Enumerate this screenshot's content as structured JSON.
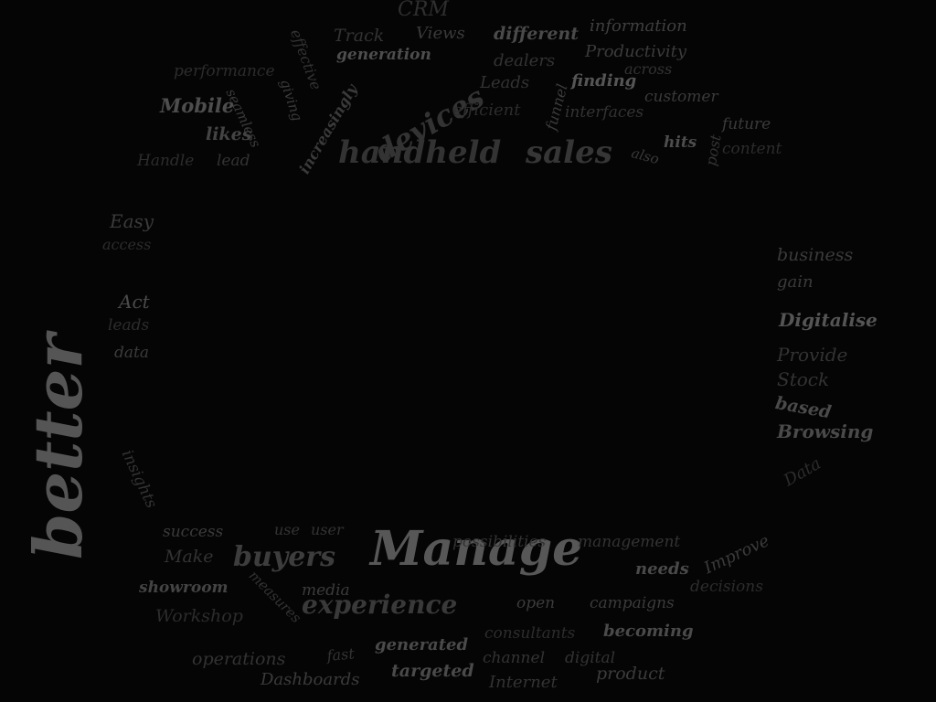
{
  "words": [
    {
      "text": "better",
      "color": "#555555",
      "bold": true
    },
    {
      "text": "Manage",
      "color": "#575757",
      "bold": true
    },
    {
      "text": "buyers",
      "color": "#3d3d3d",
      "bold": true
    },
    {
      "text": "experience",
      "color": "#393939",
      "bold": true
    },
    {
      "text": "handheld",
      "color": "#333333",
      "bold": true
    },
    {
      "text": "sales",
      "color": "#363636",
      "bold": true
    },
    {
      "text": "devices",
      "color": "#333333",
      "bold": true
    },
    {
      "text": "CRM",
      "color": "#2f2f2f",
      "bold": false
    },
    {
      "text": "Track",
      "color": "#333333",
      "bold": false
    },
    {
      "text": "Views",
      "color": "#3a3a3a",
      "bold": false
    },
    {
      "text": "different",
      "color": "#4a4a4a",
      "bold": true
    },
    {
      "text": "information",
      "color": "#3f3f3f",
      "bold": false
    },
    {
      "text": "effective",
      "color": "#333333",
      "bold": false
    },
    {
      "text": "generation",
      "color": "#4d4d4d",
      "bold": true
    },
    {
      "text": "dealers",
      "color": "#333333",
      "bold": false
    },
    {
      "text": "Productivity",
      "color": "#3b3b3b",
      "bold": false
    },
    {
      "text": "performance",
      "color": "#2c2c2c",
      "bold": false
    },
    {
      "text": "giving",
      "color": "#3b3b3b",
      "bold": false
    },
    {
      "text": "increasingly",
      "color": "#3a3a3a",
      "bold": true
    },
    {
      "text": "Leads",
      "color": "#333333",
      "bold": false
    },
    {
      "text": "across",
      "color": "#333333",
      "bold": false
    },
    {
      "text": "finding",
      "color": "#555555",
      "bold": true
    },
    {
      "text": "Mobile",
      "color": "#4d4d4d",
      "bold": true
    },
    {
      "text": "seamless",
      "color": "#3a3a3a",
      "bold": false
    },
    {
      "text": "funnel",
      "color": "#3b3b3b",
      "bold": false
    },
    {
      "text": "customer",
      "color": "#3a3a3a",
      "bold": false
    },
    {
      "text": "efficient",
      "color": "#2c2c2c",
      "bold": false
    },
    {
      "text": "interfaces",
      "color": "#333333",
      "bold": false
    },
    {
      "text": "post",
      "color": "#333333",
      "bold": false
    },
    {
      "text": "future",
      "color": "#3b3b3b",
      "bold": false
    },
    {
      "text": "likes",
      "color": "#444444",
      "bold": true
    },
    {
      "text": "hits",
      "color": "#4d4d4d",
      "bold": true
    },
    {
      "text": "also",
      "color": "#3a3a3a",
      "bold": false
    },
    {
      "text": "content",
      "color": "#2c2c2c",
      "bold": false
    },
    {
      "text": "Handle",
      "color": "#2c2c2c",
      "bold": false
    },
    {
      "text": "lead",
      "color": "#333333",
      "bold": false
    },
    {
      "text": "Easy",
      "color": "#3b3b3b",
      "bold": false
    },
    {
      "text": "access",
      "color": "#2c2c2c",
      "bold": false
    },
    {
      "text": "Act",
      "color": "#4a4a4a",
      "bold": false
    },
    {
      "text": "leads",
      "color": "#2c2c2c",
      "bold": false
    },
    {
      "text": "data",
      "color": "#3b3b3b",
      "bold": false
    },
    {
      "text": "insights",
      "color": "#333333",
      "bold": false
    },
    {
      "text": "business",
      "color": "#3b3b3b",
      "bold": false
    },
    {
      "text": "gain",
      "color": "#3b3b3b",
      "bold": false
    },
    {
      "text": "Digitalise",
      "color": "#555555",
      "bold": true
    },
    {
      "text": "Provide",
      "color": "#333333",
      "bold": false
    },
    {
      "text": "Stock",
      "color": "#333333",
      "bold": false
    },
    {
      "text": "based",
      "color": "#4a4a4a",
      "bold": true
    },
    {
      "text": "Browsing",
      "color": "#4a4a4a",
      "bold": true
    },
    {
      "text": "Data",
      "color": "#2c2c2c",
      "bold": false
    },
    {
      "text": "success",
      "color": "#3b3b3b",
      "bold": false
    },
    {
      "text": "use",
      "color": "#333333",
      "bold": false
    },
    {
      "text": "user",
      "color": "#333333",
      "bold": false
    },
    {
      "text": "possibilities",
      "color": "#333333",
      "bold": false
    },
    {
      "text": "management",
      "color": "#333333",
      "bold": false
    },
    {
      "text": "Improve",
      "color": "#3b3b3b",
      "bold": false
    },
    {
      "text": "Make",
      "color": "#333333",
      "bold": false
    },
    {
      "text": "needs",
      "color": "#4a4a4a",
      "bold": true
    },
    {
      "text": "showroom",
      "color": "#444444",
      "bold": true
    },
    {
      "text": "measures",
      "color": "#333333",
      "bold": false
    },
    {
      "text": "media",
      "color": "#3b3b3b",
      "bold": false
    },
    {
      "text": "decisions",
      "color": "#2c2c2c",
      "bold": false
    },
    {
      "text": "open",
      "color": "#3b3b3b",
      "bold": false
    },
    {
      "text": "campaigns",
      "color": "#3b3b3b",
      "bold": false
    },
    {
      "text": "Workshop",
      "color": "#2c2c2c",
      "bold": false
    },
    {
      "text": "consultants",
      "color": "#2c2c2c",
      "bold": false
    },
    {
      "text": "becoming",
      "color": "#4a4a4a",
      "bold": true
    },
    {
      "text": "generated",
      "color": "#4a4a4a",
      "bold": true
    },
    {
      "text": "operations",
      "color": "#333333",
      "bold": false
    },
    {
      "text": "fast",
      "color": "#333333",
      "bold": false
    },
    {
      "text": "channel",
      "color": "#333333",
      "bold": false
    },
    {
      "text": "digital",
      "color": "#333333",
      "bold": false
    },
    {
      "text": "targeted",
      "color": "#4a4a4a",
      "bold": true
    },
    {
      "text": "product",
      "color": "#3b3b3b",
      "bold": false
    },
    {
      "text": "Dashboards",
      "color": "#3b3b3b",
      "bold": false
    },
    {
      "text": "Internet",
      "color": "#333333",
      "bold": false
    }
  ]
}
